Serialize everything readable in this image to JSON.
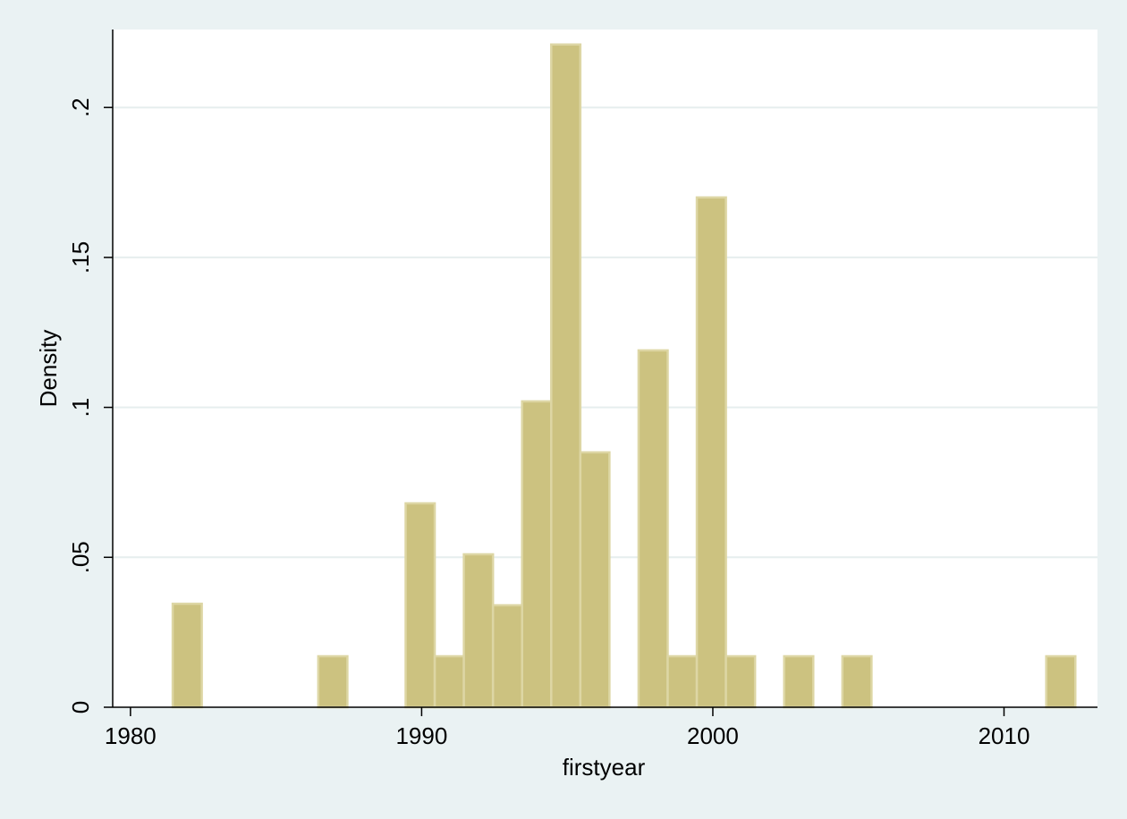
{
  "chart_data": {
    "type": "histogram",
    "x_label": "firstyear",
    "y_label": "Density",
    "bins": [
      1981.45,
      1982.45,
      1983.45,
      1984.45,
      1985.45,
      1986.45,
      1987.45,
      1988.45,
      1989.45,
      1990.45,
      1991.45,
      1992.45,
      1993.45,
      1994.45,
      1995.45,
      1996.45,
      1997.45,
      1998.45,
      1999.45,
      2000.45,
      2001.45,
      2002.45,
      2003.45,
      2004.45,
      2005.45,
      2006.45,
      2007.45,
      2008.45,
      2009.45,
      2010.45,
      2011.45,
      2012.45
    ],
    "values": [
      0.0345,
      0,
      0,
      0,
      0,
      0.017,
      0,
      0,
      0.068,
      0.017,
      0.051,
      0.034,
      0.102,
      0.221,
      0.085,
      0,
      0.119,
      0.017,
      0.17,
      0.017,
      0,
      0.017,
      0,
      0.017,
      0,
      0,
      0,
      0,
      0,
      0,
      0.017
    ],
    "color": "#ccc280",
    "xlim": [
      1979.39,
      2013.21
    ],
    "ylim": [
      0,
      0.226
    ],
    "xticks": [
      1980,
      1990,
      2000,
      2010
    ],
    "yticks": [
      0,
      {
        "value": 0.05,
        "label": ".05"
      },
      {
        "value": 0.1,
        "label": ".1"
      },
      {
        "value": 0.15,
        "label": ".15"
      },
      {
        "value": 0.2,
        "label": ".2"
      }
    ],
    "grid": true
  }
}
